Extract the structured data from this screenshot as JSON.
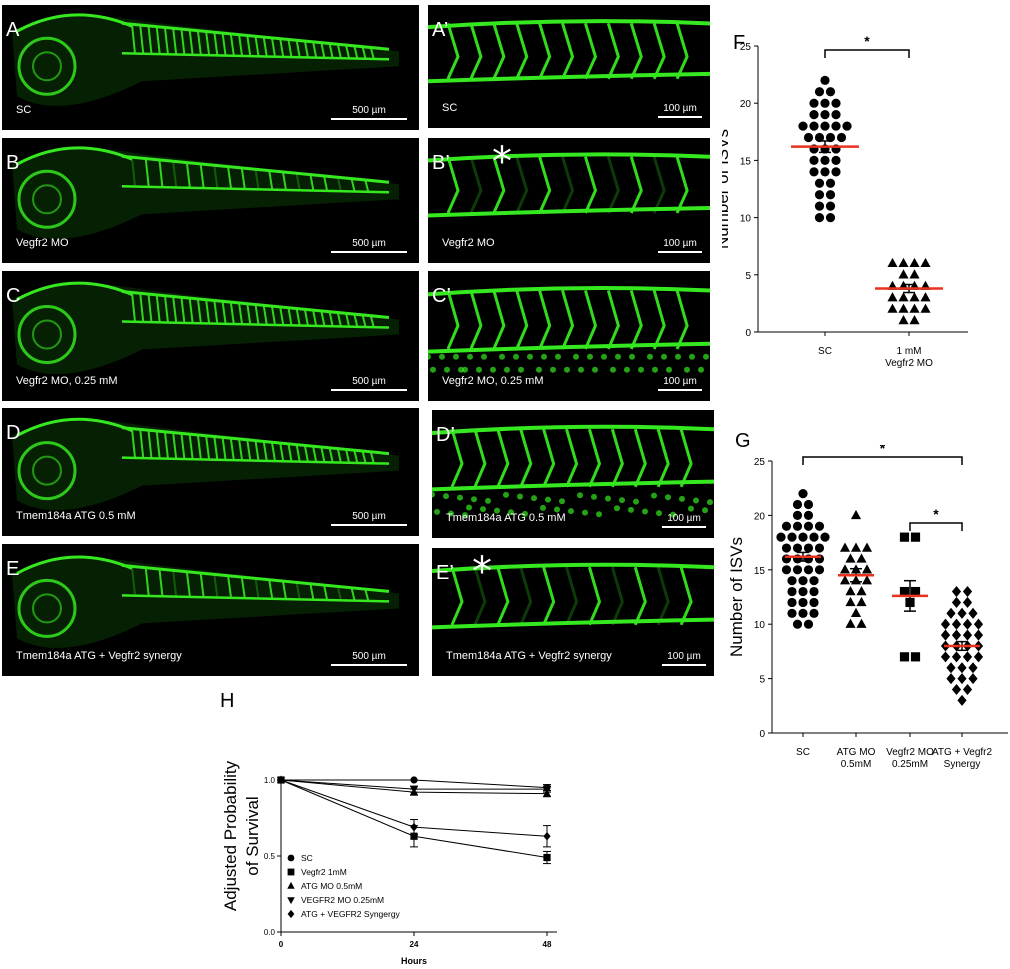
{
  "panels_left": [
    {
      "label": "A",
      "condition": "SC",
      "scale": "500 µm"
    },
    {
      "label": "B",
      "condition": "Vegfr2 MO",
      "scale": "500 µm"
    },
    {
      "label": "C",
      "condition": "Vegfr2 MO, 0.25 mM",
      "scale": "500 µm"
    },
    {
      "label": "D",
      "condition": "Tmem184a ATG 0.5 mM",
      "scale": "500 µm"
    },
    {
      "label": "E",
      "condition": "Tmem184a ATG + Vegfr2 synergy",
      "scale": "500 µm"
    }
  ],
  "panels_right": [
    {
      "label": "A’",
      "condition": "SC",
      "scale": "100 µm",
      "star": ""
    },
    {
      "label": "B’",
      "condition": "Vegfr2 MO",
      "scale": "100 µm",
      "star": "*"
    },
    {
      "label": "C’",
      "condition": "Vegfr2 MO, 0.25 mM",
      "scale": "100 µm",
      "star": ""
    },
    {
      "label": "D’",
      "condition": "Tmem184a ATG 0.5 mM",
      "scale": "100 µm",
      "star": ""
    },
    {
      "label": "E’",
      "condition": "Tmem184a ATG + Vegfr2 synergy",
      "scale": "100 µm",
      "star": "*"
    }
  ],
  "colors": {
    "vessel": "#35e81f",
    "mean_line": "#e8321e",
    "background": "#000000"
  },
  "chart_data": [
    {
      "panel": "F",
      "type": "scatter",
      "ylabel": "Number of ISVs",
      "ylim": [
        0,
        25
      ],
      "yticks": [
        0,
        5,
        10,
        15,
        20,
        25
      ],
      "categories": [
        "SC",
        "1 mM\nVegfr2 MO"
      ],
      "markers": [
        "circle",
        "triangle"
      ],
      "values": [
        [
          22,
          21,
          21,
          20,
          20,
          20,
          19,
          19,
          19,
          18,
          18,
          18,
          18,
          18,
          17,
          17,
          17,
          17,
          16,
          16,
          16,
          15,
          15,
          15,
          14,
          14,
          14,
          13,
          13,
          12,
          12,
          11,
          11,
          10,
          10
        ],
        [
          6,
          6,
          6,
          6,
          5,
          5,
          4,
          4,
          4,
          4,
          3,
          3,
          3,
          3,
          2,
          2,
          2,
          2,
          1,
          1
        ]
      ],
      "means": [
        16.2,
        3.8
      ],
      "sem": [
        0.5,
        0.35
      ],
      "significance": [
        {
          "from": 0,
          "to": 1,
          "text": "*"
        }
      ]
    },
    {
      "panel": "G",
      "type": "scatter",
      "ylabel": "Number of ISVs",
      "ylim": [
        0,
        25
      ],
      "yticks": [
        0,
        5,
        10,
        15,
        20,
        25
      ],
      "categories": [
        "SC",
        "ATG MO\n0.5mM",
        "Vegfr2 MO\n0.25mM",
        "ATG + Vegfr2\nSynergy"
      ],
      "markers": [
        "circle",
        "triangle",
        "square",
        "diamond"
      ],
      "values": [
        [
          22,
          21,
          21,
          20,
          20,
          19,
          19,
          19,
          19,
          18,
          18,
          18,
          18,
          18,
          17,
          17,
          17,
          17,
          16,
          16,
          16,
          16,
          15,
          15,
          15,
          15,
          14,
          14,
          14,
          13,
          13,
          13,
          12,
          12,
          12,
          11,
          11,
          11,
          10,
          10
        ],
        [
          20,
          17,
          17,
          17,
          16,
          16,
          15,
          15,
          15,
          14,
          14,
          14,
          13,
          13,
          12,
          12,
          11,
          10,
          10
        ],
        [
          18,
          18,
          13,
          13,
          12,
          7,
          7
        ],
        [
          13,
          13,
          12,
          12,
          11,
          11,
          11,
          10,
          10,
          10,
          10,
          9,
          9,
          9,
          9,
          8,
          8,
          8,
          8,
          7,
          7,
          7,
          7,
          6,
          6,
          6,
          5,
          5,
          5,
          4,
          4,
          3
        ]
      ],
      "means": [
        16.2,
        14.5,
        12.6,
        8.0
      ],
      "sem": [
        0.4,
        0.6,
        1.4,
        0.4
      ],
      "significance": [
        {
          "from": 0,
          "to": 3,
          "text": "*"
        },
        {
          "from": 2,
          "to": 3,
          "text": "*"
        }
      ]
    },
    {
      "panel": "H",
      "type": "line",
      "xlabel": "Hours",
      "ylabel": "Adjusted Probability\nof Survival",
      "x": [
        0,
        24,
        48
      ],
      "xticks": [
        0,
        24,
        48
      ],
      "ylim": [
        0,
        1
      ],
      "yticks": [
        0.0,
        0.5,
        1.0
      ],
      "ytick_labels": [
        "0.0",
        "0.5",
        "1.0"
      ],
      "series": [
        {
          "name": "SC",
          "marker": "circle",
          "values": [
            1.0,
            1.0,
            0.95
          ],
          "err": [
            0,
            0,
            0.02
          ]
        },
        {
          "name": "Vegfr2 1mM",
          "marker": "square",
          "values": [
            1.0,
            0.63,
            0.49
          ],
          "err": [
            0,
            0.07,
            0.04
          ]
        },
        {
          "name": "ATG MO 0.5mM",
          "marker": "triangle",
          "values": [
            1.0,
            0.92,
            0.91
          ],
          "err": [
            0,
            0.02,
            0.02
          ]
        },
        {
          "name": "VEGFR2 MO 0.25mM",
          "marker": "triangle-down",
          "values": [
            1.0,
            0.94,
            0.94
          ],
          "err": [
            0,
            0.02,
            0.02
          ]
        },
        {
          "name": "ATG + VEGFR2 Syngergy",
          "marker": "diamond",
          "values": [
            1.0,
            0.69,
            0.63
          ],
          "err": [
            0,
            0.05,
            0.07
          ]
        }
      ],
      "legend": "bottom-left"
    }
  ]
}
